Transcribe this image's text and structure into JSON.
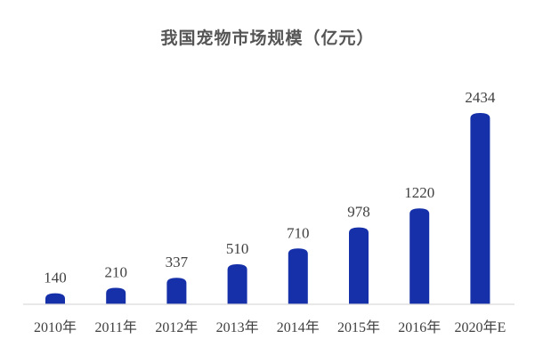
{
  "chart_data": {
    "type": "bar",
    "title": "我国宠物市场规模（亿元）",
    "xlabel": "",
    "ylabel": "",
    "categories": [
      "2010年",
      "2011年",
      "2012年",
      "2013年",
      "2014年",
      "2015年",
      "2016年",
      "2020年E"
    ],
    "values": [
      140,
      210,
      337,
      510,
      710,
      978,
      1220,
      2434
    ],
    "value_labels": [
      "140",
      "210",
      "337",
      "510",
      "710",
      "978",
      "1220",
      "2434"
    ],
    "ylim": [
      0,
      2434
    ],
    "grid": false,
    "legend": "none",
    "bar_color": "#1530A8",
    "axis_color": "#D9D9D9",
    "text_color": "#404040",
    "title_color": "#555555"
  }
}
